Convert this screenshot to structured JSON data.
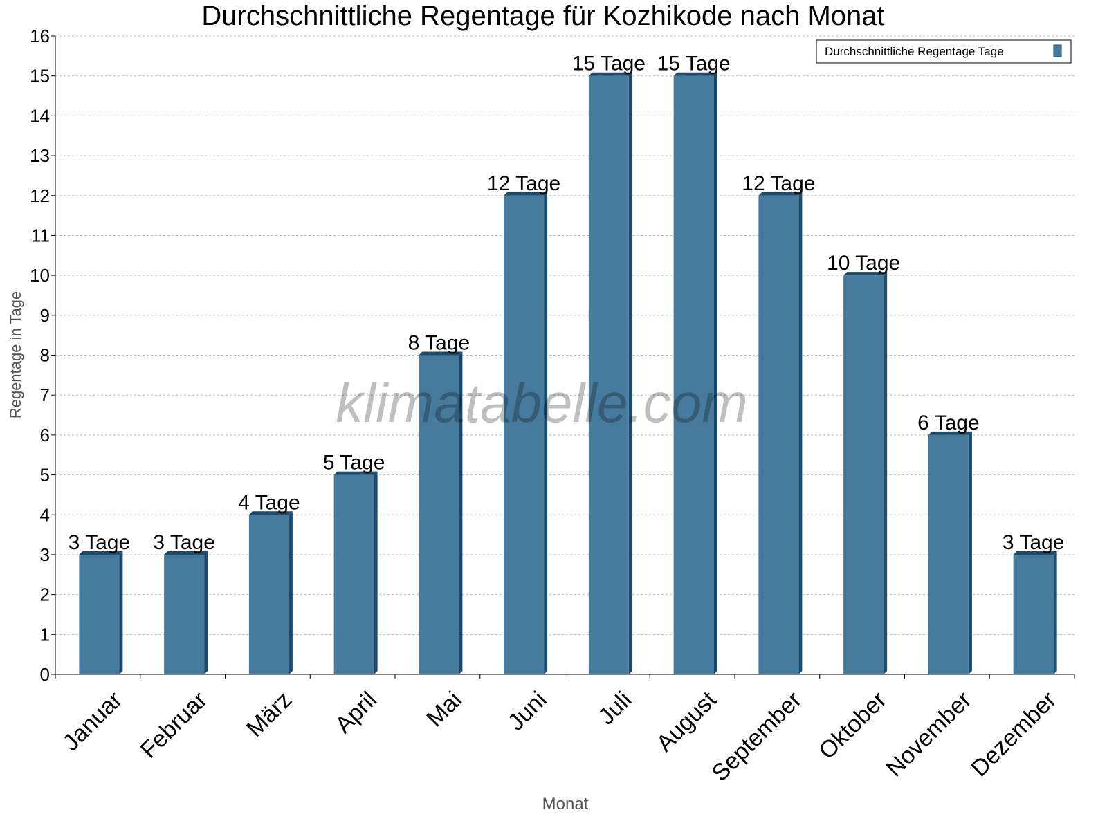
{
  "chart_data": {
    "type": "bar",
    "title": "Durchschnittliche Regentage für Kozhikode nach Monat",
    "xlabel": "Monat",
    "ylabel": "Regentage in Tage",
    "categories": [
      "Januar",
      "Februar",
      "März",
      "April",
      "Mai",
      "Juni",
      "Juli",
      "August",
      "September",
      "Oktober",
      "November",
      "Dezember"
    ],
    "series": [
      {
        "name": "Durchschnittliche Regentage Tage",
        "values": [
          3,
          3,
          4,
          5,
          8,
          12,
          15,
          15,
          12,
          10,
          6,
          3
        ],
        "color": "#467b9d",
        "shade_color": "#1b4a6b"
      }
    ],
    "data_labels": [
      "3 Tage",
      "3 Tage",
      "4 Tage",
      "5 Tage",
      "8 Tage",
      "12 Tage",
      "15 Tage",
      "15 Tage",
      "12 Tage",
      "10 Tage",
      "6 Tage",
      "3 Tage"
    ],
    "ylim": [
      0,
      16
    ],
    "yticks": [
      0,
      1,
      2,
      3,
      4,
      5,
      6,
      7,
      8,
      9,
      10,
      11,
      12,
      13,
      14,
      15,
      16
    ],
    "grid": true,
    "legend_position": "top-right",
    "watermark": "klimatabelle.com"
  }
}
